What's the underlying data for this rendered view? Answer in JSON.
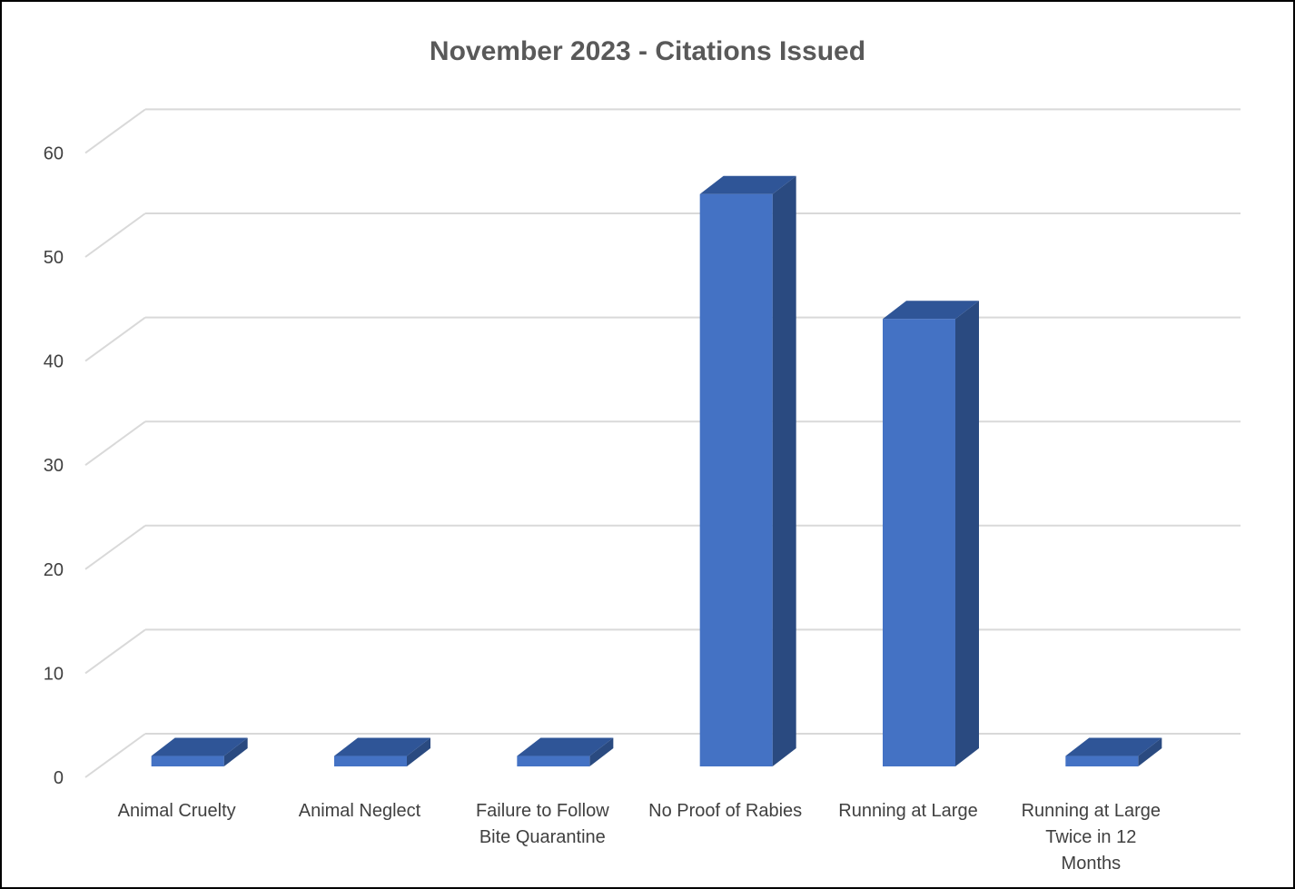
{
  "chart_data": {
    "type": "bar",
    "title": "November 2023 - Citations Issued",
    "categories": [
      [
        "Animal Cruelty"
      ],
      [
        "Animal Neglect"
      ],
      [
        "Failure to Follow",
        "Bite Quarantine"
      ],
      [
        "No Proof of Rabies"
      ],
      [
        "Running at Large"
      ],
      [
        "Running at Large",
        "Twice in 12",
        "Months"
      ]
    ],
    "values": [
      1,
      1,
      1,
      55,
      43,
      1
    ],
    "yticks": [
      "0",
      "10",
      "20",
      "30",
      "40",
      "50",
      "60"
    ],
    "ylim": [
      0,
      60
    ],
    "grid": true,
    "legend": "none",
    "colors": {
      "bar_front": "#4472C4",
      "bar_top": "#2F5597",
      "bar_side": "#2A4A80",
      "grid": "#D9D9D9"
    }
  }
}
